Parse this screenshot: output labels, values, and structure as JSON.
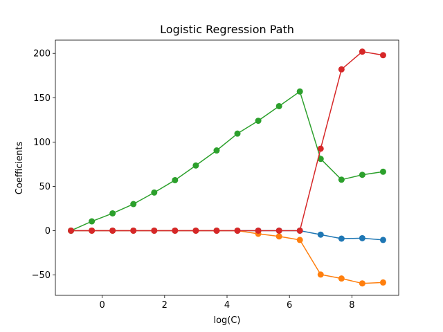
{
  "chart_data": {
    "type": "line",
    "title": "Logistic Regression Path",
    "xlabel": "log(C)",
    "ylabel": "Coefficients",
    "xlim": [
      -1.5,
      9.5
    ],
    "ylim": [
      -73,
      215
    ],
    "xticks": [
      0,
      2,
      4,
      6,
      8
    ],
    "yticks": [
      -50,
      0,
      50,
      100,
      150,
      200
    ],
    "ytick_labels": [
      "−50",
      "0",
      "50",
      "100",
      "150",
      "200"
    ],
    "grid": false,
    "markers": true,
    "x": [
      -1.0,
      -0.333,
      0.333,
      1.0,
      1.667,
      2.333,
      3.0,
      3.667,
      4.333,
      5.0,
      5.667,
      6.333,
      7.0,
      7.667,
      8.333,
      9.0
    ],
    "series": [
      {
        "color": "#1f77b4",
        "values": [
          0,
          0,
          0,
          0,
          0,
          0,
          0,
          0,
          0,
          0,
          0,
          0,
          -4.5,
          -9,
          -8.5,
          -10.5
        ]
      },
      {
        "color": "#ff7f0e",
        "values": [
          0,
          0,
          0,
          0,
          0,
          0,
          0,
          0,
          0,
          -3.5,
          -6.5,
          -10.5,
          -49.5,
          -54,
          -59.5,
          -58.5
        ]
      },
      {
        "color": "#2ca02c",
        "values": [
          0,
          10.5,
          19.5,
          30,
          43,
          57,
          73.5,
          90.5,
          109.5,
          124,
          140.5,
          157,
          81,
          57.5,
          63,
          66.5
        ]
      },
      {
        "color": "#d62728",
        "values": [
          0,
          0,
          0,
          0,
          0,
          0,
          0,
          0,
          0,
          0,
          0,
          0,
          92.5,
          182,
          202,
          198
        ]
      }
    ]
  }
}
